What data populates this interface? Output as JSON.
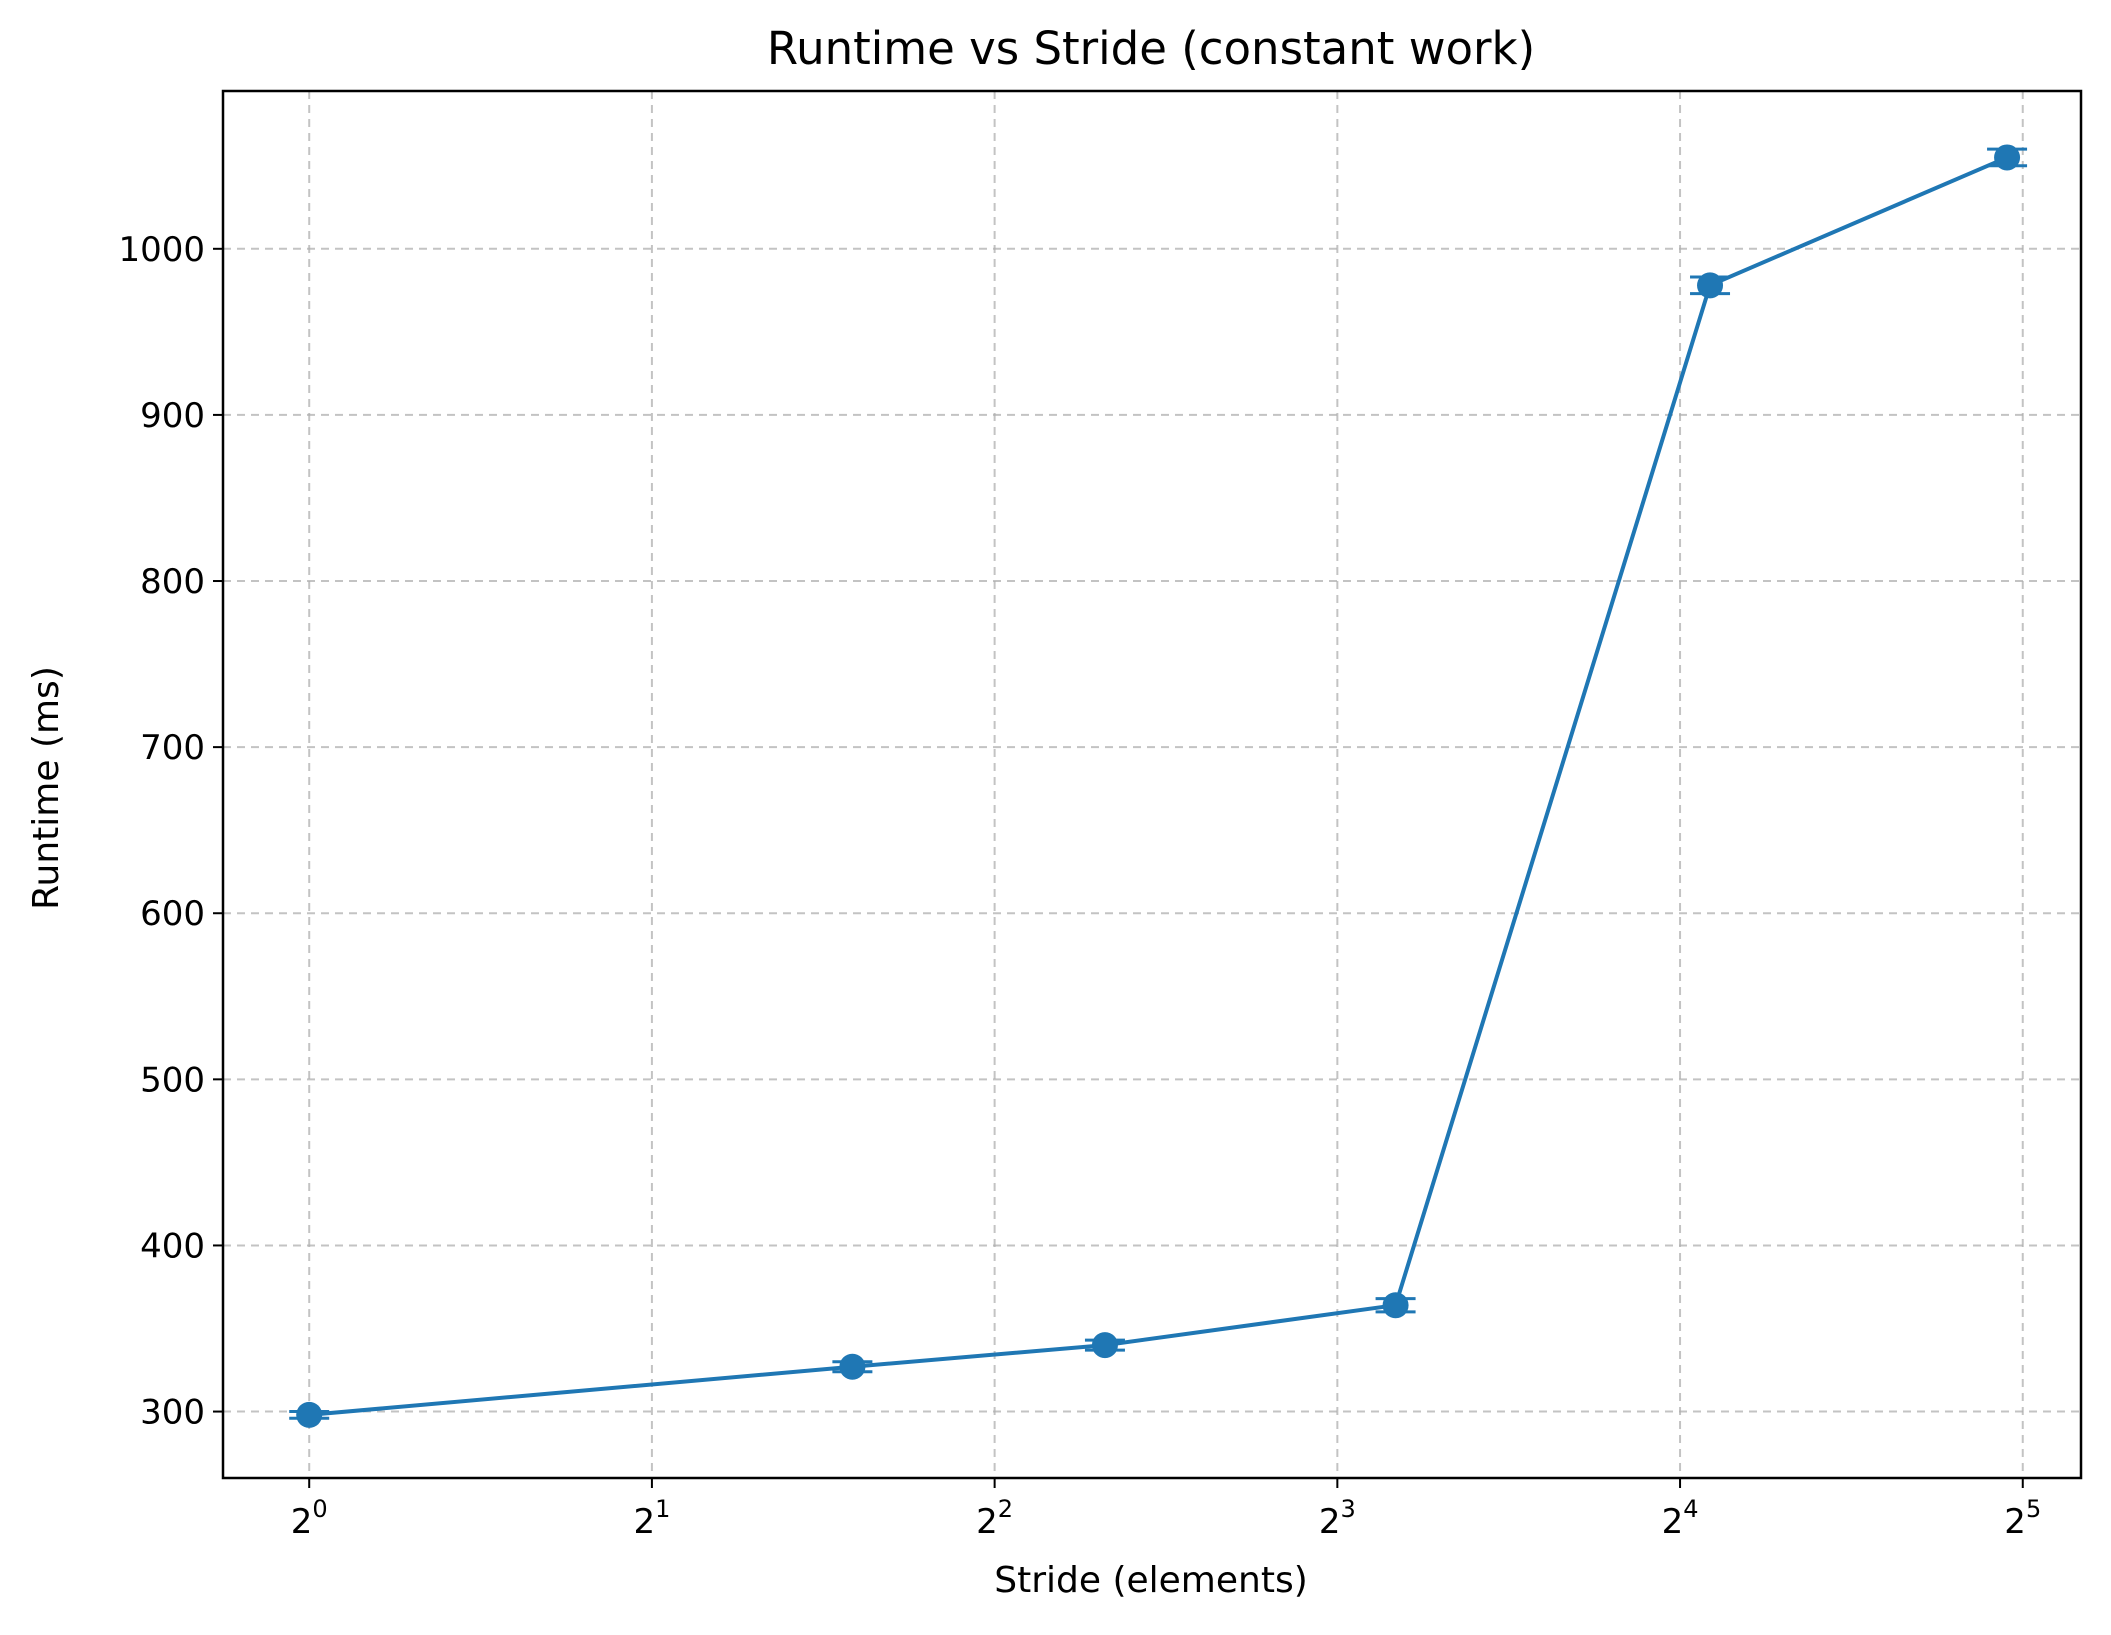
{
  "chart_data": {
    "type": "line",
    "title": "Runtime vs Stride (constant work)",
    "xlabel": "Stride (elements)",
    "ylabel": "Runtime (ms)",
    "xscale": "log2",
    "xlim": [
      0.84,
      36.0
    ],
    "ylim": [
      260,
      1095
    ],
    "grid": true,
    "x_tick_values": [
      1,
      2,
      4,
      8,
      16,
      32
    ],
    "x_ticks": [
      {
        "base": "2",
        "exp": "0"
      },
      {
        "base": "2",
        "exp": "1"
      },
      {
        "base": "2",
        "exp": "2"
      },
      {
        "base": "2",
        "exp": "3"
      },
      {
        "base": "2",
        "exp": "4"
      },
      {
        "base": "2",
        "exp": "5"
      }
    ],
    "y_ticks": [
      300,
      400,
      500,
      600,
      700,
      800,
      900,
      1000
    ],
    "series": [
      {
        "color": "#1f77b4",
        "marker": "circle",
        "x": [
          1,
          3,
          5,
          9,
          17,
          31
        ],
        "y": [
          298,
          327,
          340,
          364,
          978,
          1055
        ],
        "y_err": [
          2,
          3,
          3,
          4,
          5,
          5
        ]
      }
    ]
  }
}
